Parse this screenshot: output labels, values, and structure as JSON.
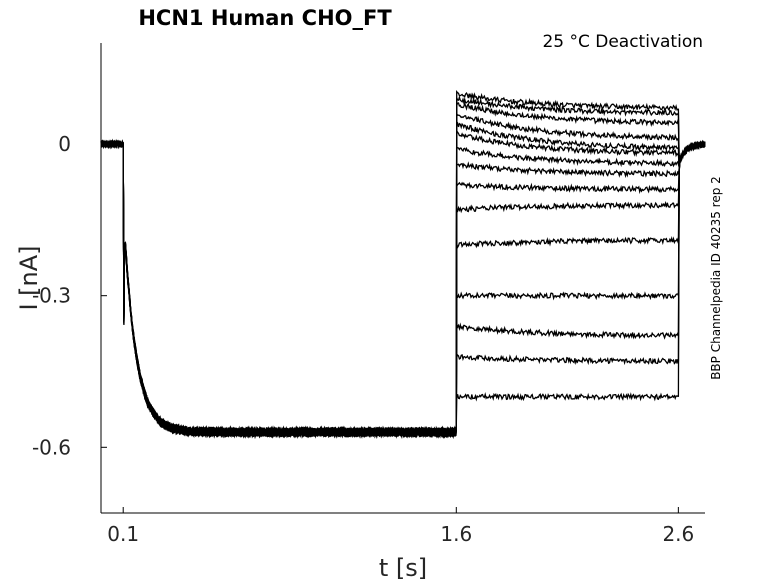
{
  "chart_data": {
    "type": "line",
    "title": "HCN1  Human  CHO_FT",
    "annotation": "25 °C  Deactivation",
    "side_label": "BBP Channelpedia ID 40235 rep 2",
    "xlabel": "t [s]",
    "ylabel": "I [nA]",
    "xlim": [
      0.0,
      2.72
    ],
    "ylim": [
      -0.73,
      0.2
    ],
    "xticks": [
      0.1,
      1.6,
      2.6
    ],
    "xtick_labels": [
      "0.1",
      "1.6",
      "2.6"
    ],
    "yticks": [
      0,
      -0.3,
      -0.6
    ],
    "ytick_labels": [
      "0",
      "-0.3",
      "-0.6"
    ],
    "grid": false,
    "protocol": {
      "holding_current": 0.0,
      "activation_start": 0.1,
      "activation_steady": -0.57,
      "activation_spike": -0.33,
      "deactivation_start": 1.6,
      "deactivation_end": 2.6,
      "recording_end": 2.72
    },
    "series": [
      {
        "start": 0.1,
        "end": 0.07
      },
      {
        "start": 0.09,
        "end": 0.06
      },
      {
        "start": 0.08,
        "end": 0.04
      },
      {
        "start": 0.06,
        "end": 0.01
      },
      {
        "start": 0.04,
        "end": -0.01
      },
      {
        "start": 0.02,
        "end": -0.02
      },
      {
        "start": -0.01,
        "end": -0.04
      },
      {
        "start": -0.04,
        "end": -0.06
      },
      {
        "start": -0.08,
        "end": -0.09
      },
      {
        "start": -0.13,
        "end": -0.12
      },
      {
        "start": -0.2,
        "end": -0.19
      },
      {
        "start": -0.3,
        "end": -0.3
      },
      {
        "start": -0.36,
        "end": -0.38
      },
      {
        "start": -0.42,
        "end": -0.43
      },
      {
        "start": -0.5,
        "end": -0.5
      }
    ]
  }
}
